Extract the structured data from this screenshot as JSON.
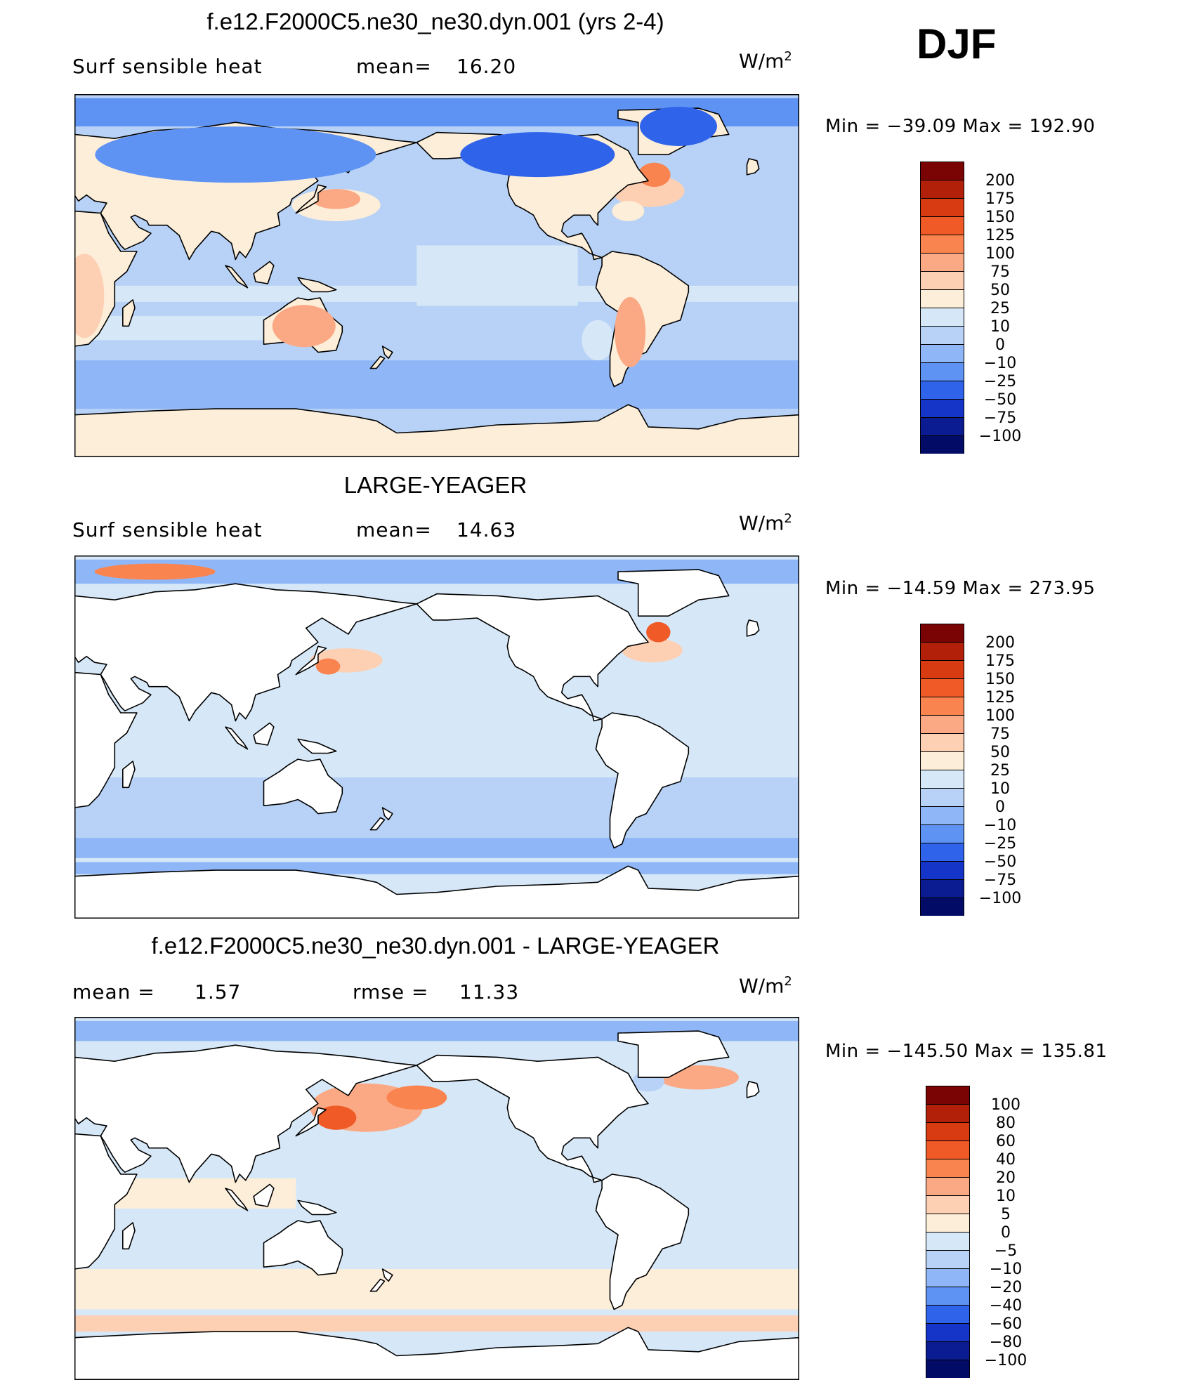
{
  "season": "DJF",
  "colors": {
    "land": "#ffffff",
    "coast": "#000000",
    "frame": "#000000"
  },
  "chart_data": [
    {
      "type": "heatmap",
      "title": "f.e12.F2000C5.ne30_ne30.dyn.001 (yrs 2-4)",
      "variable": "Surf sensible heat",
      "stat1_label": "mean=",
      "stat1_value": "16.20",
      "units_base": "W/m",
      "units_exp": "2",
      "minmax": "Min = −39.09 Max = 192.90",
      "land_masked": false,
      "colorbar": {
        "labels": [
          "200",
          "175",
          "150",
          "125",
          "100",
          "75",
          "50",
          "25",
          "10",
          "0",
          "−10",
          "−25",
          "−50",
          "−75",
          "−100"
        ],
        "colors": [
          "#7a0403",
          "#b3200a",
          "#d83a12",
          "#f05a26",
          "#f9844f",
          "#fba985",
          "#fdd0b4",
          "#fdeed9",
          "#d6e8f8",
          "#b7d2f6",
          "#8fb7f7",
          "#5f93f3",
          "#2f63ea",
          "#1535c9",
          "#0b1c92",
          "#020b66"
        ]
      }
    },
    {
      "type": "heatmap",
      "title": "LARGE-YEAGER",
      "variable": "Surf sensible heat",
      "stat1_label": "mean=",
      "stat1_value": "14.63",
      "units_base": "W/m",
      "units_exp": "2",
      "minmax": "Min = −14.59 Max = 273.95",
      "land_masked": true,
      "colorbar": {
        "labels": [
          "200",
          "175",
          "150",
          "125",
          "100",
          "75",
          "50",
          "25",
          "10",
          "0",
          "−10",
          "−25",
          "−50",
          "−75",
          "−100"
        ],
        "colors": [
          "#7a0403",
          "#b3200a",
          "#d83a12",
          "#f05a26",
          "#f9844f",
          "#fba985",
          "#fdd0b4",
          "#fdeed9",
          "#d6e8f8",
          "#b7d2f6",
          "#8fb7f7",
          "#5f93f3",
          "#2f63ea",
          "#1535c9",
          "#0b1c92",
          "#020b66"
        ]
      }
    },
    {
      "type": "heatmap",
      "title": "f.e12.F2000C5.ne30_ne30.dyn.001 - LARGE-YEAGER",
      "stat1_label": "mean =",
      "stat1_value": "1.57",
      "stat2_label": "rmse =",
      "stat2_value": "11.33",
      "units_base": "W/m",
      "units_exp": "2",
      "minmax": "Min = −145.50 Max = 135.81",
      "land_masked": true,
      "colorbar": {
        "labels": [
          "100",
          "80",
          "60",
          "40",
          "20",
          "10",
          "5",
          "0",
          "−5",
          "−10",
          "−20",
          "−40",
          "−60",
          "−80",
          "−100"
        ],
        "colors": [
          "#7a0403",
          "#b3200a",
          "#d83a12",
          "#f05a26",
          "#f9844f",
          "#fba985",
          "#fdd0b4",
          "#fdeed9",
          "#d6e8f8",
          "#b7d2f6",
          "#8fb7f7",
          "#5f93f3",
          "#2f63ea",
          "#1535c9",
          "#0b1c92",
          "#020b66"
        ]
      }
    }
  ]
}
